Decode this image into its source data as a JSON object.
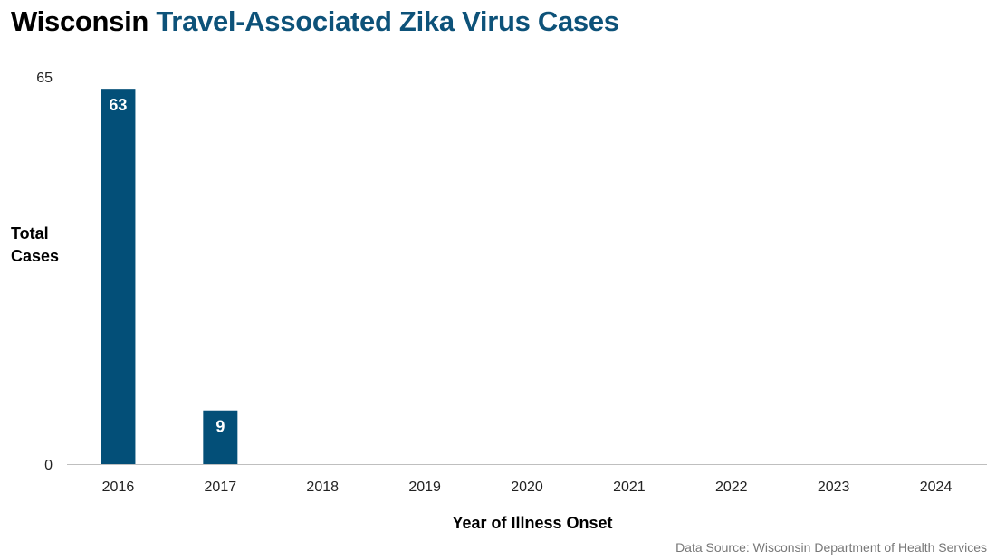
{
  "title": {
    "part1": "Wisconsin",
    "part2": "Travel-Associated Zika Virus Cases"
  },
  "source": "Data Source: Wisconsin Department of Health Services",
  "colors": {
    "bar": "#034f78",
    "title_accent": "#0d5279",
    "axis": "#bfbfbf"
  },
  "chart_data": {
    "type": "bar",
    "title": "Wisconsin Travel-Associated Zika Virus Cases",
    "xlabel": "Year of Illness Onset",
    "ylabel_lines": [
      "Total",
      "Cases"
    ],
    "categories": [
      "2016",
      "2017",
      "2018",
      "2019",
      "2020",
      "2021",
      "2022",
      "2023",
      "2024"
    ],
    "values": [
      63,
      9,
      0,
      0,
      0,
      0,
      0,
      0,
      0
    ],
    "data_labels": [
      "63",
      "9",
      "",
      "",
      "",
      "",
      "",
      "",
      ""
    ],
    "ylim": [
      0,
      65
    ],
    "yticks": [
      "0",
      "65"
    ],
    "grid": false,
    "legend": "none"
  }
}
